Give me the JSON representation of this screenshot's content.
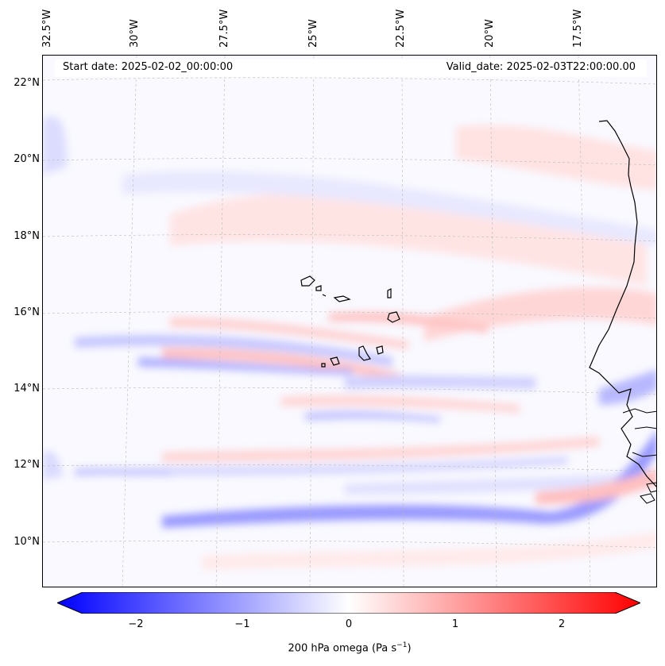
{
  "map": {
    "header": {
      "start_date": "Start date: 2025-02-02_00:00:00",
      "valid_date": "Valid_date: 2025-02-03T22:00:00.00"
    },
    "lon_labels": [
      "32.5°W",
      "30°W",
      "27.5°W",
      "25°W",
      "22.5°W",
      "20°W",
      "17.5°W"
    ],
    "lat_labels": [
      "22°N",
      "20°N",
      "18°N",
      "16°N",
      "14°N",
      "12°N",
      "10°N"
    ],
    "colorbar": {
      "ticks": [
        "−2",
        "−1",
        "0",
        "1",
        "2"
      ],
      "label": "200 hPa omega (Pa s",
      "label_sup": "−1",
      "label_end": ")",
      "min_color": "#0000ff",
      "mid_color": "#ffffff",
      "max_color": "#ff0000"
    }
  }
}
